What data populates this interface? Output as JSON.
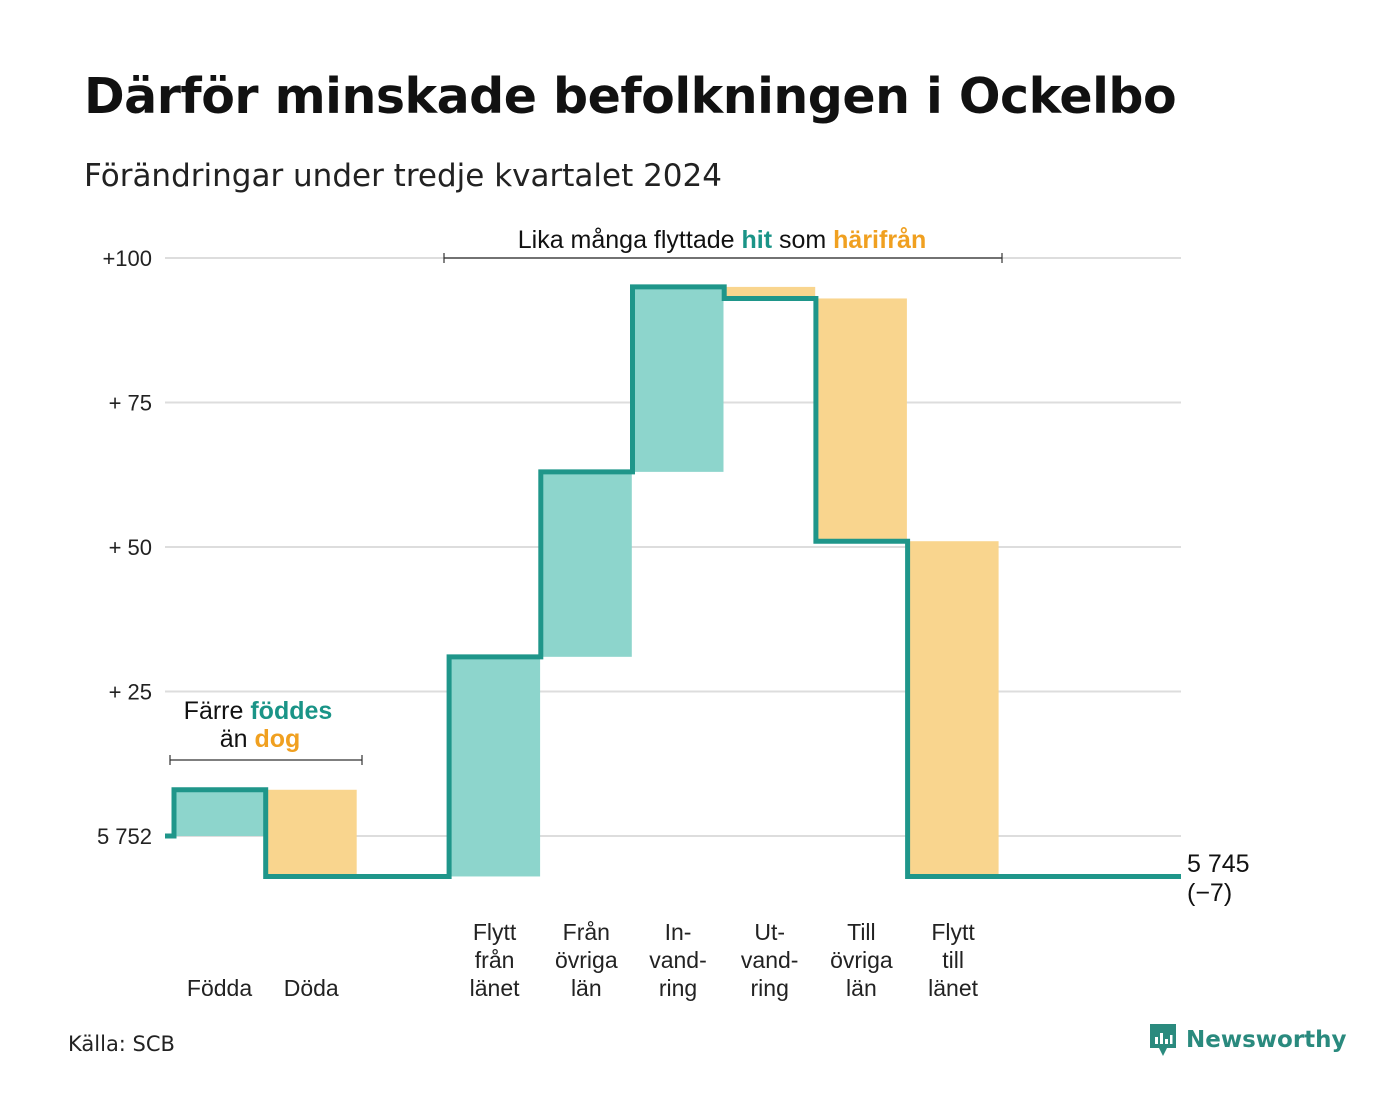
{
  "title": "Därför minskade befolkningen i Ockelbo",
  "subtitle": "Förändringar under tredje kvartalet 2024",
  "source": "Källa: SCB",
  "brand": "Newsworthy",
  "colors": {
    "in": "#8dd5cc",
    "out": "#f9d58e",
    "line": "#1f968a",
    "grid": "#dddddd",
    "hit_text": "#1a9487",
    "away_text": "#f0a020"
  },
  "annotations": {
    "top": {
      "prefix": "Lika många flyttade ",
      "hit": "hit",
      "middle": " som ",
      "away": "härifrån"
    },
    "left": {
      "line1_prefix": "Färre ",
      "line1_hit": "föddes",
      "line2_prefix": "än ",
      "line2_away": "dog"
    }
  },
  "chart_data": {
    "type": "waterfall",
    "title": "Därför minskade befolkningen i Ockelbo",
    "subtitle": "Förändringar under tredje kvartalet 2024",
    "start_value": 5752,
    "end_value": 5745,
    "end_label": [
      "5 745",
      "(−7)"
    ],
    "y_range_relative": [
      -7,
      100
    ],
    "y_ticks": [
      {
        "value": 100,
        "label": "+100"
      },
      {
        "value": 75,
        "label": "+ 75"
      },
      {
        "value": 50,
        "label": "+ 50"
      },
      {
        "value": 25,
        "label": "+ 25"
      },
      {
        "value": 0,
        "label": "5 752"
      }
    ],
    "steps": [
      {
        "category": [
          "Födda"
        ],
        "change": 8,
        "kind": "in"
      },
      {
        "category": [
          "Döda"
        ],
        "change": -15,
        "kind": "out"
      },
      {
        "category": [
          "Flytt",
          "från",
          "länet"
        ],
        "change": 38,
        "kind": "in"
      },
      {
        "category": [
          "Från",
          "övriga",
          "län"
        ],
        "change": 32,
        "kind": "in"
      },
      {
        "category": [
          "In-",
          "vand-",
          "ring"
        ],
        "change": 32,
        "kind": "in"
      },
      {
        "category": [
          "Ut-",
          "vand-",
          "ring"
        ],
        "change": -2,
        "kind": "out"
      },
      {
        "category": [
          "Till",
          "övriga",
          "län"
        ],
        "change": -42,
        "kind": "out"
      },
      {
        "category": [
          "Flytt",
          "till",
          "länet"
        ],
        "change": -58,
        "kind": "out"
      }
    ],
    "grid": true,
    "legend": "none"
  }
}
